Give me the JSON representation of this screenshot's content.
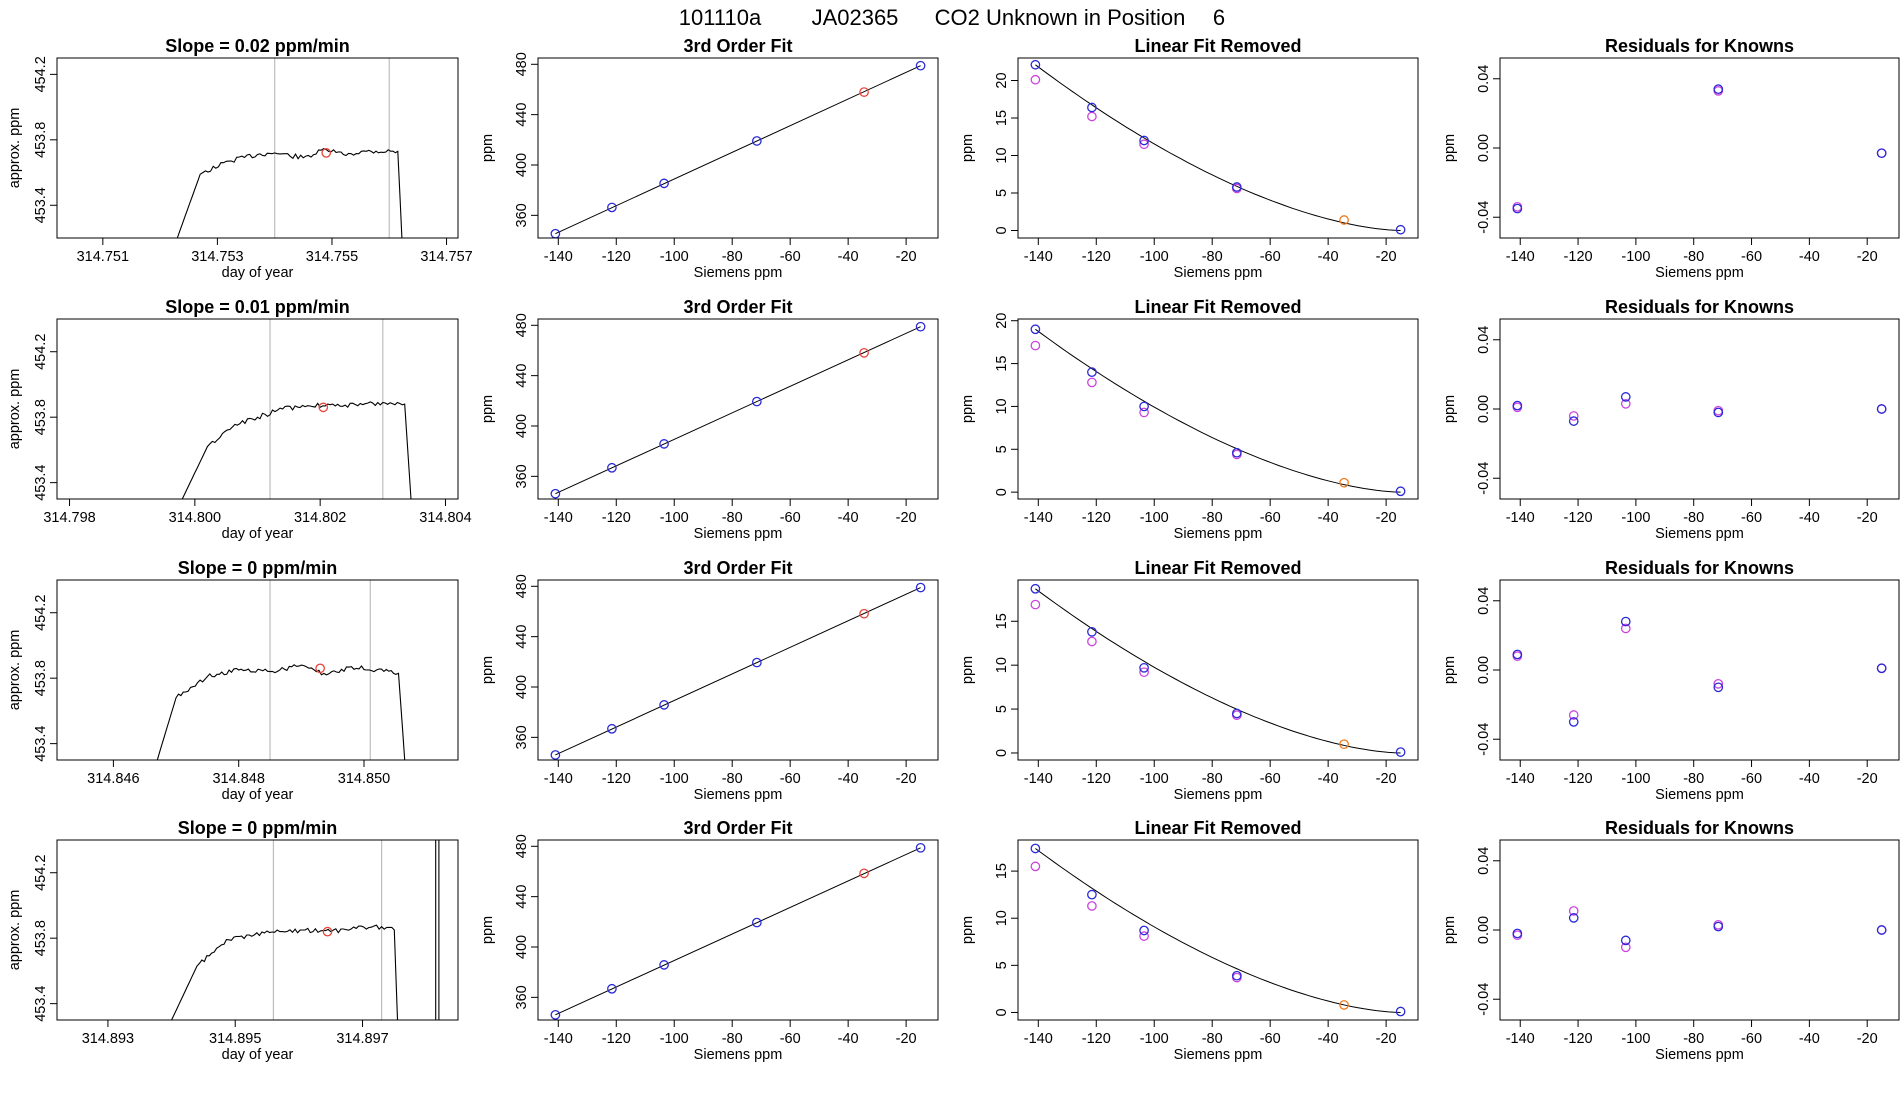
{
  "figure": {
    "title_parts": [
      "101110a",
      "JA02365",
      "CO2 Unknown in Position",
      "6"
    ]
  },
  "colors": {
    "trace": "#000000",
    "vline": "#bebebe",
    "unknown_point": "#e8453c",
    "known_point": "#2a2ad6",
    "linear_alt": "#cc44dd",
    "unknown_fit_point": "#f07a1a",
    "residual_alt": "#a0a0ff",
    "axis": "#000000"
  },
  "chart_data": [
    {
      "row": 1,
      "type": "line",
      "kind": "time_trace",
      "title": "Slope =  0.02  ppm/min",
      "xlabel": "day of year",
      "ylabel": "approx. ppm",
      "xlim": [
        314.7502,
        314.7572
      ],
      "ylim": [
        453.2,
        454.3
      ],
      "xticks": [
        314.751,
        314.753,
        314.755,
        314.757
      ],
      "xtick_labels": [
        "314.751",
        "314.753",
        "314.755",
        "314.757"
      ],
      "yticks": [
        453.4,
        453.8,
        454.2
      ],
      "ytick_labels": [
        "453.4",
        "453.8",
        "454.2"
      ],
      "vlines": [
        314.754,
        314.756
      ],
      "trace": {
        "x": [
          314.7523,
          314.7527,
          314.7532,
          314.7537,
          314.754,
          314.7545,
          314.7549,
          314.7552,
          314.7556,
          314.75615,
          314.75622
        ],
        "y": [
          453.2,
          453.59,
          453.67,
          453.71,
          453.72,
          453.69,
          453.74,
          453.71,
          453.73,
          453.73,
          453.2
        ]
      },
      "marker": {
        "x": 314.7549,
        "y": 453.72
      }
    },
    {
      "type": "line",
      "kind": "fit",
      "title": "3rd Order Fit",
      "xlabel": "Siemens ppm",
      "ylabel": "ppm",
      "xlim": [
        -147,
        -9
      ],
      "ylim": [
        342,
        485
      ],
      "xticks": [
        -140,
        -120,
        -100,
        -80,
        -60,
        -40,
        -20
      ],
      "xtick_labels": [
        "-140",
        "-120",
        "-100",
        "-80",
        "-60",
        "-40",
        "-20"
      ],
      "yticks": [
        360,
        400,
        440,
        480
      ],
      "ytick_labels": [
        "360",
        "400",
        "440",
        "480"
      ],
      "curve_x": [
        -141,
        -15
      ],
      "curve_y": [
        345.4,
        478.9
      ],
      "known": {
        "x": [
          -141,
          -121.5,
          -103.5,
          -71.5,
          -15
        ],
        "y": [
          345.4,
          366.3,
          385.4,
          419.1,
          478.9
        ]
      },
      "unknown": {
        "x": [
          -34.5
        ],
        "y": [
          457.9
        ]
      }
    },
    {
      "type": "line",
      "kind": "linear_removed",
      "title": "Linear Fit Removed",
      "xlabel": "Siemens ppm",
      "ylabel": "ppm",
      "xlim": [
        -147,
        -9
      ],
      "ylim": [
        -1,
        23
      ],
      "xticks": [
        -140,
        -120,
        -100,
        -80,
        -60,
        -40,
        -20
      ],
      "xtick_labels": [
        "-140",
        "-120",
        "-100",
        "-80",
        "-60",
        "-40",
        "-20"
      ],
      "yticks": [
        0,
        5,
        10,
        15,
        20
      ],
      "ytick_labels": [
        "0",
        "5",
        "10",
        "15",
        "20"
      ],
      "curve": {
        "x0": -141,
        "y0": 22.1
      },
      "known": {
        "x": [
          -141,
          -121.5,
          -103.5,
          -71.5,
          -15
        ],
        "y": [
          22.1,
          16.4,
          12.0,
          5.8,
          0.1
        ]
      },
      "alt": {
        "x": [
          -141,
          -121.5,
          -103.5,
          -71.5
        ],
        "y": [
          20.1,
          15.2,
          11.5,
          5.6
        ]
      },
      "unknown": {
        "x": [
          -34.5
        ],
        "y": [
          1.4
        ]
      }
    },
    {
      "type": "scatter",
      "kind": "residuals",
      "title": "Residuals for Knowns",
      "xlabel": "Siemens ppm",
      "ylabel": "ppm",
      "xlim": [
        -147,
        -9
      ],
      "ylim": [
        -0.052,
        0.052
      ],
      "xticks": [
        -140,
        -120,
        -100,
        -80,
        -60,
        -40,
        -20
      ],
      "xtick_labels": [
        "-140",
        "-120",
        "-100",
        "-80",
        "-60",
        "-40",
        "-20"
      ],
      "yticks": [
        -0.04,
        0.0,
        0.04
      ],
      "ytick_labels": [
        "-0.04",
        "0.00",
        "0.04"
      ],
      "known": {
        "x": [
          -141,
          -71.5,
          -15
        ],
        "y": [
          -0.035,
          0.034,
          -0.003
        ]
      },
      "alt": {
        "x": [
          -141,
          -71.5,
          -15
        ],
        "y": [
          -0.034,
          0.033,
          -0.003
        ]
      }
    },
    {
      "row": 2,
      "type": "line",
      "kind": "time_trace",
      "title": "Slope =  0.01  ppm/min",
      "xlabel": "day of year",
      "ylabel": "approx. ppm",
      "xlim": [
        314.7978,
        314.8042
      ],
      "ylim": [
        453.3,
        454.4
      ],
      "xticks": [
        314.798,
        314.8,
        314.802,
        314.804
      ],
      "xtick_labels": [
        "314.798",
        "314.800",
        "314.802",
        "314.804"
      ],
      "yticks": [
        453.4,
        453.8,
        454.2
      ],
      "ytick_labels": [
        "453.4",
        "453.8",
        "454.2"
      ],
      "vlines": [
        314.8012,
        314.803
      ],
      "trace": {
        "x": [
          314.7998,
          314.8002,
          314.8006,
          314.801,
          314.8014,
          314.8018,
          314.8022,
          314.8026,
          314.803,
          314.80335,
          314.80345
        ],
        "y": [
          453.3,
          453.62,
          453.74,
          453.8,
          453.85,
          453.87,
          453.88,
          453.87,
          453.89,
          453.88,
          453.3
        ]
      },
      "marker": {
        "x": 314.80205,
        "y": 453.86
      }
    },
    {
      "type": "line",
      "kind": "fit",
      "title": "3rd Order Fit",
      "xlabel": "Siemens ppm",
      "ylabel": "ppm",
      "xlim": [
        -147,
        -9
      ],
      "ylim": [
        342,
        485
      ],
      "xticks": [
        -140,
        -120,
        -100,
        -80,
        -60,
        -40,
        -20
      ],
      "xtick_labels": [
        "-140",
        "-120",
        "-100",
        "-80",
        "-60",
        "-40",
        "-20"
      ],
      "yticks": [
        360,
        400,
        440,
        480
      ],
      "ytick_labels": [
        "360",
        "400",
        "440",
        "480"
      ],
      "curve_x": [
        -141,
        -15
      ],
      "curve_y": [
        346.2,
        478.9
      ],
      "known": {
        "x": [
          -141,
          -121.5,
          -103.5,
          -71.5,
          -15
        ],
        "y": [
          346.2,
          366.8,
          385.8,
          419.4,
          478.9
        ]
      },
      "unknown": {
        "x": [
          -34.5
        ],
        "y": [
          458.1
        ]
      }
    },
    {
      "type": "line",
      "kind": "linear_removed",
      "title": "Linear Fit Removed",
      "xlabel": "Siemens ppm",
      "ylabel": "ppm",
      "xlim": [
        -147,
        -9
      ],
      "ylim": [
        -0.8,
        20.2
      ],
      "xticks": [
        -140,
        -120,
        -100,
        -80,
        -60,
        -40,
        -20
      ],
      "xtick_labels": [
        "-140",
        "-120",
        "-100",
        "-80",
        "-60",
        "-40",
        "-20"
      ],
      "yticks": [
        0,
        5,
        10,
        15,
        20
      ],
      "ytick_labels": [
        "0",
        "5",
        "10",
        "15",
        "20"
      ],
      "curve": {
        "x0": -141,
        "y0": 19.0
      },
      "known": {
        "x": [
          -141,
          -121.5,
          -103.5,
          -71.5,
          -15
        ],
        "y": [
          19.0,
          14.0,
          10.0,
          4.6,
          0.1
        ]
      },
      "alt": {
        "x": [
          -141,
          -121.5,
          -103.5,
          -71.5
        ],
        "y": [
          17.1,
          12.8,
          9.3,
          4.4
        ]
      },
      "unknown": {
        "x": [
          -34.5
        ],
        "y": [
          1.1
        ]
      }
    },
    {
      "type": "scatter",
      "kind": "residuals",
      "title": "Residuals for Knowns",
      "xlabel": "Siemens ppm",
      "ylabel": "ppm",
      "xlim": [
        -147,
        -9
      ],
      "ylim": [
        -0.052,
        0.052
      ],
      "xticks": [
        -140,
        -120,
        -100,
        -80,
        -60,
        -40,
        -20
      ],
      "xtick_labels": [
        "-140",
        "-120",
        "-100",
        "-80",
        "-60",
        "-40",
        "-20"
      ],
      "yticks": [
        -0.04,
        0.0,
        0.04
      ],
      "ytick_labels": [
        "-0.04",
        "0.00",
        "0.04"
      ],
      "known": {
        "x": [
          -141,
          -121.5,
          -103.5,
          -71.5,
          -15
        ],
        "y": [
          0.002,
          -0.007,
          0.007,
          -0.002,
          0.0
        ]
      },
      "alt": {
        "x": [
          -141,
          -121.5,
          -103.5,
          -71.5,
          -15
        ],
        "y": [
          0.001,
          -0.004,
          0.003,
          -0.001,
          0.0
        ]
      }
    },
    {
      "row": 3,
      "type": "line",
      "kind": "time_trace",
      "title": "Slope =  0  ppm/min",
      "xlabel": "day of year",
      "ylabel": "approx. ppm",
      "xlim": [
        314.8451,
        314.8515
      ],
      "ylim": [
        453.3,
        454.4
      ],
      "xticks": [
        314.846,
        314.848,
        314.85
      ],
      "xtick_labels": [
        "314.846",
        "314.848",
        "314.850"
      ],
      "yticks": [
        453.4,
        453.8,
        454.2
      ],
      "ytick_labels": [
        "453.4",
        "453.8",
        "454.2"
      ],
      "vlines": [
        314.8485,
        314.8501
      ],
      "trace": {
        "x": [
          314.8467,
          314.847,
          314.8475,
          314.848,
          314.8485,
          314.849,
          314.8494,
          314.8498,
          314.8502,
          314.85055,
          314.85065
        ],
        "y": [
          453.3,
          453.68,
          453.81,
          453.85,
          453.84,
          453.88,
          453.82,
          453.87,
          453.85,
          453.83,
          453.3
        ]
      },
      "marker": {
        "x": 314.8493,
        "y": 453.86
      }
    },
    {
      "type": "line",
      "kind": "fit",
      "title": "3rd Order Fit",
      "xlabel": "Siemens ppm",
      "ylabel": "ppm",
      "xlim": [
        -147,
        -9
      ],
      "ylim": [
        342,
        485
      ],
      "xticks": [
        -140,
        -120,
        -100,
        -80,
        -60,
        -40,
        -20
      ],
      "xtick_labels": [
        "-140",
        "-120",
        "-100",
        "-80",
        "-60",
        "-40",
        "-20"
      ],
      "yticks": [
        360,
        400,
        440,
        480
      ],
      "ytick_labels": [
        "360",
        "400",
        "440",
        "480"
      ],
      "curve_x": [
        -141,
        -15
      ],
      "curve_y": [
        346.0,
        479.0
      ],
      "known": {
        "x": [
          -141,
          -121.5,
          -103.5,
          -71.5,
          -15
        ],
        "y": [
          346.0,
          366.8,
          385.8,
          419.4,
          479.0
        ]
      },
      "unknown": {
        "x": [
          -34.5
        ],
        "y": [
          458.2
        ]
      }
    },
    {
      "type": "line",
      "kind": "linear_removed",
      "title": "Linear Fit Removed",
      "xlabel": "Siemens ppm",
      "ylabel": "ppm",
      "xlim": [
        -147,
        -9
      ],
      "ylim": [
        -0.8,
        19.7
      ],
      "xticks": [
        -140,
        -120,
        -100,
        -80,
        -60,
        -40,
        -20
      ],
      "xtick_labels": [
        "-140",
        "-120",
        "-100",
        "-80",
        "-60",
        "-40",
        "-20"
      ],
      "yticks": [
        0,
        5,
        10,
        15
      ],
      "ytick_labels": [
        "0",
        "5",
        "10",
        "15"
      ],
      "curve": {
        "x0": -141,
        "y0": 18.7
      },
      "known": {
        "x": [
          -141,
          -121.5,
          -103.5,
          -71.5,
          -15
        ],
        "y": [
          18.7,
          13.8,
          9.7,
          4.5,
          0.1
        ]
      },
      "alt": {
        "x": [
          -141,
          -121.5,
          -103.5,
          -71.5
        ],
        "y": [
          16.9,
          12.7,
          9.2,
          4.3
        ]
      },
      "unknown": {
        "x": [
          -34.5
        ],
        "y": [
          1.0
        ]
      }
    },
    {
      "type": "scatter",
      "kind": "residuals",
      "title": "Residuals for Knowns",
      "xlabel": "Siemens ppm",
      "ylabel": "ppm",
      "xlim": [
        -147,
        -9
      ],
      "ylim": [
        -0.052,
        0.052
      ],
      "xticks": [
        -140,
        -120,
        -100,
        -80,
        -60,
        -40,
        -20
      ],
      "xtick_labels": [
        "-140",
        "-120",
        "-100",
        "-80",
        "-60",
        "-40",
        "-20"
      ],
      "yticks": [
        -0.04,
        0.0,
        0.04
      ],
      "ytick_labels": [
        "-0.04",
        "0.00",
        "0.04"
      ],
      "known": {
        "x": [
          -141,
          -121.5,
          -103.5,
          -71.5,
          -15
        ],
        "y": [
          0.009,
          -0.03,
          0.028,
          -0.01,
          0.001
        ]
      },
      "alt": {
        "x": [
          -141,
          -121.5,
          -103.5,
          -71.5,
          -15
        ],
        "y": [
          0.008,
          -0.026,
          0.024,
          -0.008,
          0.001
        ]
      }
    },
    {
      "row": 4,
      "type": "line",
      "kind": "time_trace",
      "title": "Slope =  0  ppm/min",
      "xlabel": "day of year",
      "ylabel": "approx. ppm",
      "xlim": [
        314.8922,
        314.8985
      ],
      "ylim": [
        453.3,
        454.4
      ],
      "xticks": [
        314.893,
        314.895,
        314.897
      ],
      "xtick_labels": [
        "314.893",
        "314.895",
        "314.897"
      ],
      "yticks": [
        453.4,
        453.8,
        454.2
      ],
      "ytick_labels": [
        "453.4",
        "453.8",
        "454.2"
      ],
      "vlines": [
        314.8956,
        314.8973
      ],
      "trace": {
        "x": [
          314.894,
          314.8944,
          314.8949,
          314.8953,
          314.8957,
          314.8961,
          314.8965,
          314.8969,
          314.8973,
          314.8975,
          314.89755
        ],
        "y": [
          453.3,
          453.63,
          453.79,
          453.82,
          453.84,
          453.85,
          453.84,
          453.86,
          453.87,
          453.85,
          453.3
        ]
      },
      "trace2": {
        "x": [
          314.89815,
          314.89815,
          314.8982,
          314.8982
        ],
        "y": [
          453.3,
          454.4,
          454.4,
          453.3
        ]
      },
      "marker": {
        "x": 314.89645,
        "y": 453.84
      }
    },
    {
      "type": "line",
      "kind": "fit",
      "title": "3rd Order Fit",
      "xlabel": "Siemens ppm",
      "ylabel": "ppm",
      "xlim": [
        -147,
        -9
      ],
      "ylim": [
        342,
        485
      ],
      "xticks": [
        -140,
        -120,
        -100,
        -80,
        -60,
        -40,
        -20
      ],
      "xtick_labels": [
        "-140",
        "-120",
        "-100",
        "-80",
        "-60",
        "-40",
        "-20"
      ],
      "yticks": [
        360,
        400,
        440,
        480
      ],
      "ytick_labels": [
        "360",
        "400",
        "440",
        "480"
      ],
      "curve_x": [
        -141,
        -15
      ],
      "curve_y": [
        346.1,
        478.8
      ],
      "known": {
        "x": [
          -141,
          -121.5,
          -103.5,
          -71.5,
          -15
        ],
        "y": [
          346.1,
          366.8,
          385.8,
          419.4,
          478.8
        ]
      },
      "unknown": {
        "x": [
          -34.5
        ],
        "y": [
          458.5
        ]
      }
    },
    {
      "type": "line",
      "kind": "linear_removed",
      "title": "Linear Fit Removed",
      "xlabel": "Siemens ppm",
      "ylabel": "ppm",
      "xlim": [
        -147,
        -9
      ],
      "ylim": [
        -0.8,
        18.3
      ],
      "xticks": [
        -140,
        -120,
        -100,
        -80,
        -60,
        -40,
        -20
      ],
      "xtick_labels": [
        "-140",
        "-120",
        "-100",
        "-80",
        "-60",
        "-40",
        "-20"
      ],
      "yticks": [
        0,
        5,
        10,
        15
      ],
      "ytick_labels": [
        "0",
        "5",
        "10",
        "15"
      ],
      "curve": {
        "x0": -141,
        "y0": 17.4
      },
      "known": {
        "x": [
          -141,
          -121.5,
          -103.5,
          -71.5,
          -15
        ],
        "y": [
          17.4,
          12.5,
          8.7,
          3.9,
          0.1
        ]
      },
      "alt": {
        "x": [
          -141,
          -121.5,
          -103.5,
          -71.5
        ],
        "y": [
          15.5,
          11.3,
          8.1,
          3.7
        ]
      },
      "unknown": {
        "x": [
          -34.5
        ],
        "y": [
          0.8
        ]
      }
    },
    {
      "type": "scatter",
      "kind": "residuals",
      "title": "Residuals for Knowns",
      "xlabel": "Siemens ppm",
      "ylabel": "ppm",
      "xlim": [
        -147,
        -9
      ],
      "ylim": [
        -0.052,
        0.052
      ],
      "xticks": [
        -140,
        -120,
        -100,
        -80,
        -60,
        -40,
        -20
      ],
      "xtick_labels": [
        "-140",
        "-120",
        "-100",
        "-80",
        "-60",
        "-40",
        "-20"
      ],
      "yticks": [
        -0.04,
        0.0,
        0.04
      ],
      "ytick_labels": [
        "-0.04",
        "0.00",
        "0.04"
      ],
      "known": {
        "x": [
          -141,
          -121.5,
          -103.5,
          -71.5,
          -15
        ],
        "y": [
          -0.002,
          0.007,
          -0.006,
          0.002,
          0.0
        ]
      },
      "alt": {
        "x": [
          -141,
          -121.5,
          -103.5,
          -71.5,
          -15
        ],
        "y": [
          -0.003,
          0.011,
          -0.01,
          0.003,
          0.0
        ]
      }
    }
  ]
}
